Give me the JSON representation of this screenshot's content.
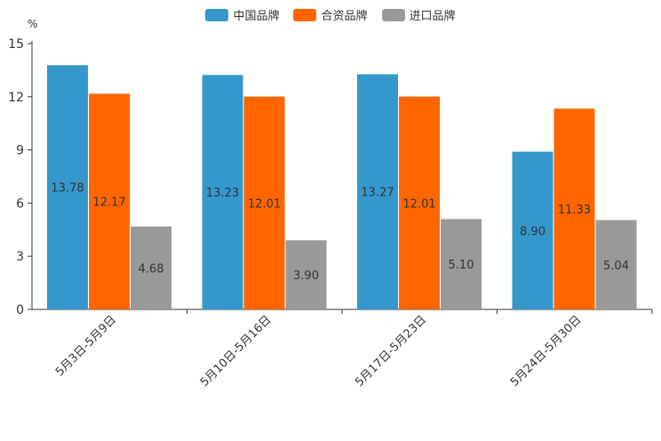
{
  "chart_data": {
    "type": "bar",
    "unit": "%",
    "categories": [
      "5月3日-5月9日",
      "5月10日-5月16日",
      "5月17日-5月23日",
      "5月24日-5月30日"
    ],
    "series": [
      {
        "name": "中国品牌",
        "color": "#3598cc",
        "values": [
          13.78,
          13.23,
          13.27,
          8.9
        ],
        "labels": [
          "13.78",
          "13.23",
          "13.27",
          "8.90"
        ]
      },
      {
        "name": "合资品牌",
        "color": "#ff6600",
        "values": [
          12.17,
          12.01,
          12.01,
          11.33
        ],
        "labels": [
          "12.17",
          "12.01",
          "12.01",
          "11.33"
        ]
      },
      {
        "name": "进口品牌",
        "color": "#999999",
        "values": [
          4.68,
          3.9,
          5.1,
          5.04
        ],
        "labels": [
          "4.68",
          "3.90",
          "5.10",
          "5.04"
        ]
      }
    ],
    "yticks": [
      0,
      3,
      6,
      9,
      12,
      15
    ],
    "ytick_labels": [
      "0",
      "3",
      "6",
      "9",
      "12",
      "15"
    ],
    "ylim": [
      0,
      15
    ],
    "legend_position": "top-center",
    "grid": false
  }
}
